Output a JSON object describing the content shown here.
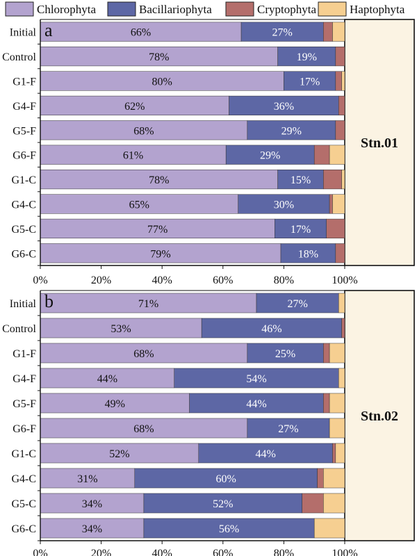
{
  "legend": [
    {
      "name": "Chlorophyta",
      "color": "#b3a3cf"
    },
    {
      "name": "Bacillariophyta",
      "color": "#5d67a5"
    },
    {
      "name": "Cryptophyta",
      "color": "#b46e6b"
    },
    {
      "name": "Haptophyta",
      "color": "#f6cf91"
    }
  ],
  "chart_data": [
    {
      "type": "bar",
      "orientation": "horizontal",
      "stacked": true,
      "panel_label": "a",
      "station_label": "Stn.01",
      "categories": [
        "Initial",
        "Control",
        "G1-F",
        "G4-F",
        "G5-F",
        "G6-F",
        "G1-C",
        "G4-C",
        "G5-C",
        "G6-C"
      ],
      "xlim": [
        0,
        100
      ],
      "xticks": [
        "0%",
        "20%",
        "40%",
        "60%",
        "80%",
        "100%"
      ],
      "series": [
        {
          "name": "Chlorophyta",
          "values": [
            66,
            78,
            80,
            62,
            68,
            61,
            78,
            65,
            77,
            79
          ],
          "labels": [
            "66%",
            "78%",
            "80%",
            "62%",
            "68%",
            "61%",
            "78%",
            "65%",
            "77%",
            "79%"
          ]
        },
        {
          "name": "Bacillariophyta",
          "values": [
            27,
            19,
            17,
            36,
            29,
            29,
            15,
            30,
            17,
            18
          ],
          "labels": [
            "27%",
            "19%",
            "17%",
            "36%",
            "29%",
            "29%",
            "15%",
            "30%",
            "17%",
            "18%"
          ]
        },
        {
          "name": "Cryptophyta",
          "values": [
            3,
            3,
            2,
            2,
            3,
            5,
            6,
            1,
            6,
            3
          ]
        },
        {
          "name": "Haptophyta",
          "values": [
            4,
            0,
            1,
            0,
            0,
            5,
            1,
            4,
            0,
            0
          ]
        }
      ]
    },
    {
      "type": "bar",
      "orientation": "horizontal",
      "stacked": true,
      "panel_label": "b",
      "station_label": "Stn.02",
      "categories": [
        "Initial",
        "Control",
        "G1-F",
        "G4-F",
        "G5-F",
        "G6-F",
        "G1-C",
        "G4-C",
        "G5-C",
        "G6-C"
      ],
      "xlim": [
        0,
        100
      ],
      "xticks": [
        "0%",
        "20%",
        "40%",
        "60%",
        "80%",
        "100%"
      ],
      "series": [
        {
          "name": "Chlorophyta",
          "values": [
            71,
            53,
            68,
            44,
            49,
            68,
            52,
            31,
            34,
            34
          ],
          "labels": [
            "71%",
            "53%",
            "68%",
            "44%",
            "49%",
            "68%",
            "52%",
            "31%",
            "34%",
            "34%"
          ]
        },
        {
          "name": "Bacillariophyta",
          "values": [
            27,
            46,
            25,
            54,
            44,
            27,
            44,
            60,
            52,
            56
          ],
          "labels": [
            "27%",
            "46%",
            "25%",
            "54%",
            "44%",
            "27%",
            "44%",
            "60%",
            "52%",
            "56%"
          ]
        },
        {
          "name": "Cryptophyta",
          "values": [
            0,
            1,
            2,
            0,
            2,
            0,
            1,
            2,
            7,
            0
          ],
          "labels": []
        },
        {
          "name": "Haptophyta",
          "values": [
            2,
            0,
            5,
            2,
            5,
            5,
            3,
            7,
            7,
            10
          ],
          "labels": []
        }
      ]
    }
  ]
}
